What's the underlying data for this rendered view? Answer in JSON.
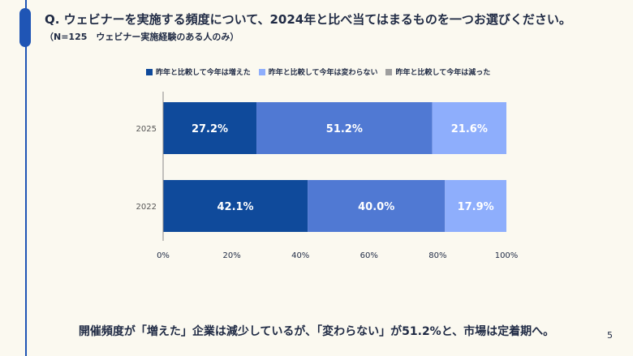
{
  "title": "Q. ウェビナーを実施する頻度について、2024年と比べ当てはまるものを一つお選びください。",
  "subtitle": "（N=125　ウェビナー実施経験のある人のみ）",
  "bottom_text": "開催頻度が「増えた」企業は減少しているが、「変わらない」が51.2%と、市場は定着期へ。",
  "page_number": "5",
  "chart_data": {
    "type": "bar",
    "orientation": "horizontal",
    "stacked": true,
    "categories": [
      "2025",
      "2022"
    ],
    "series": [
      {
        "name": "昨年と比較して今年は増えた",
        "values": [
          27.2,
          42.1
        ],
        "labels": [
          "27.2%",
          "42.1%"
        ],
        "color": "#0f4a9b"
      },
      {
        "name": "昨年と比較して今年は変わらない",
        "values": [
          51.2,
          40.0
        ],
        "labels": [
          "51.2%",
          "40.0%"
        ],
        "color": "#5079d3"
      },
      {
        "name": "昨年と比較して今年は減った",
        "values": [
          21.6,
          17.9
        ],
        "labels": [
          "21.6%",
          "17.9%"
        ],
        "color": "#8eaefc"
      }
    ],
    "xlim": [
      0,
      100
    ],
    "xticks": [
      "0%",
      "20%",
      "40%",
      "60%",
      "80%",
      "100%"
    ],
    "legend_position": "top",
    "legend_swatch_colors": [
      "#0f4a9b",
      "#8eaefc",
      "#9e9e9e"
    ]
  }
}
